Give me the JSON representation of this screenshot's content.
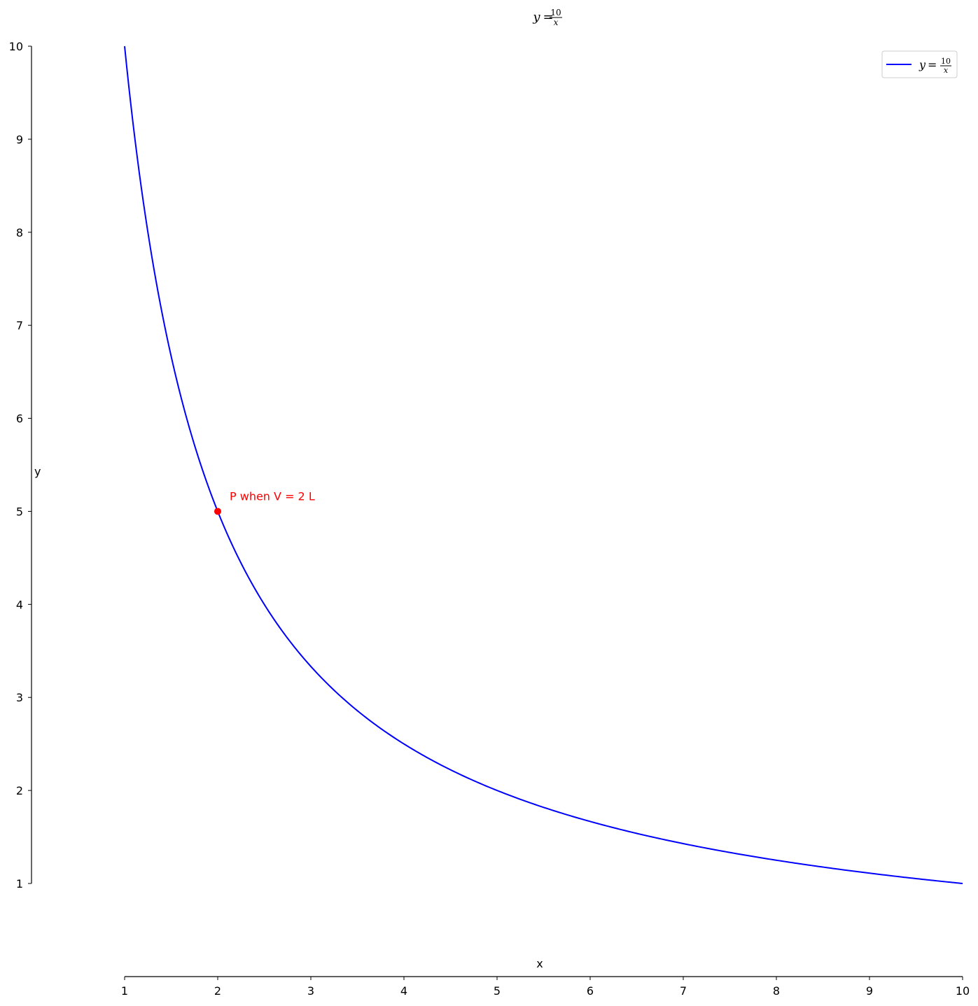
{
  "chart_data": {
    "type": "line",
    "title": {
      "lhs": "y",
      "eq": "=",
      "numerator": "10",
      "denominator": "x"
    },
    "xlabel": "x",
    "ylabel": "y",
    "xlim": [
      1,
      10
    ],
    "ylim": [
      1,
      10
    ],
    "xticks": [
      "1",
      "2",
      "3",
      "4",
      "5",
      "6",
      "7",
      "8",
      "9",
      "10"
    ],
    "yticks": [
      "1",
      "2",
      "3",
      "4",
      "5",
      "6",
      "7",
      "8",
      "9",
      "10"
    ],
    "grid": false,
    "legend": {
      "placement": "top-right"
    },
    "series": [
      {
        "name": {
          "lhs": "y",
          "eq": "=",
          "numerator": "10",
          "denominator": "x"
        },
        "color": "#0000ff",
        "function": "10/x",
        "x": [
          1,
          1.5,
          2,
          2.5,
          3,
          4,
          5,
          6,
          7,
          8,
          9,
          10
        ],
        "y": [
          10,
          6.67,
          5,
          4,
          3.33,
          2.5,
          2,
          1.67,
          1.43,
          1.25,
          1.11,
          1
        ]
      }
    ],
    "annotations": [
      {
        "text": "P when V = 2 L",
        "x": 2,
        "y": 5,
        "color": "#ff0000"
      }
    ]
  }
}
